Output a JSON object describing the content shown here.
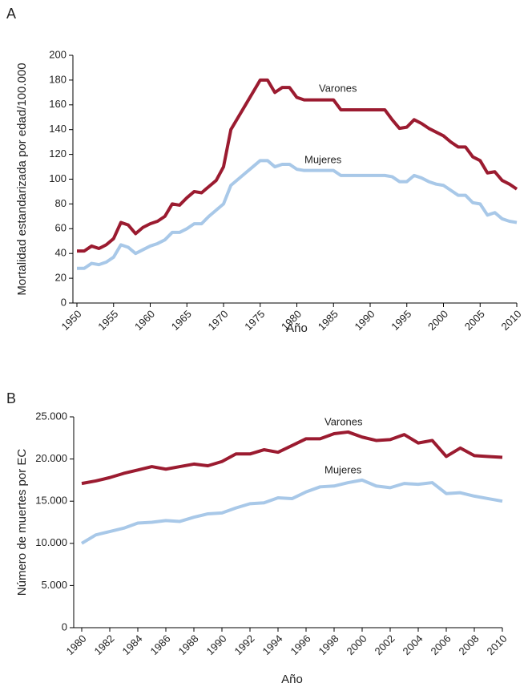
{
  "chart_data": [
    {
      "type": "line",
      "label": "A",
      "y_label": "Mortalidad estandarizada por edad/100.000",
      "x_label": "Año",
      "x": [
        1950,
        1951,
        1952,
        1953,
        1954,
        1955,
        1956,
        1957,
        1958,
        1959,
        1960,
        1961,
        1962,
        1963,
        1964,
        1965,
        1966,
        1967,
        1968,
        1969,
        1970,
        1971,
        1972,
        1973,
        1974,
        1975,
        1976,
        1977,
        1978,
        1979,
        1980,
        1981,
        1982,
        1983,
        1984,
        1985,
        1986,
        1987,
        1988,
        1989,
        1990,
        1991,
        1992,
        1993,
        1994,
        1995,
        1996,
        1997,
        1998,
        1999,
        2000,
        2001,
        2002,
        2003,
        2004,
        2005,
        2006,
        2007,
        2008,
        2009,
        2010
      ],
      "series": [
        {
          "name": "Varones",
          "color": "#9b1b30",
          "values": [
            42,
            42,
            46,
            44,
            47,
            52,
            65,
            63,
            56,
            61,
            64,
            66,
            70,
            80,
            79,
            85,
            90,
            89,
            94,
            99,
            110,
            140,
            150,
            160,
            170,
            180,
            180,
            170,
            174,
            174,
            166,
            164,
            164,
            164,
            164,
            164,
            156,
            156,
            156,
            156,
            156,
            156,
            156,
            148,
            141,
            142,
            148,
            145,
            141,
            138,
            135,
            130,
            126,
            126,
            118,
            115,
            105,
            106,
            99,
            96,
            92
          ]
        },
        {
          "name": "Mujeres",
          "color": "#a8c8e8",
          "values": [
            28,
            28,
            32,
            31,
            33,
            37,
            47,
            45,
            40,
            43,
            46,
            48,
            51,
            57,
            57,
            60,
            64,
            64,
            70,
            75,
            80,
            95,
            100,
            105,
            110,
            115,
            115,
            110,
            112,
            112,
            108,
            107,
            107,
            107,
            107,
            107,
            103,
            103,
            103,
            103,
            103,
            103,
            103,
            102,
            98,
            98,
            103,
            101,
            98,
            96,
            95,
            91,
            87,
            87,
            81,
            80,
            71,
            73,
            68,
            66,
            65
          ]
        }
      ],
      "xlim": [
        1950,
        2010
      ],
      "xticks": [
        1950,
        1955,
        1960,
        1965,
        1970,
        1975,
        1980,
        1985,
        1990,
        1995,
        2000,
        2005,
        2010
      ],
      "ylim": [
        0,
        200
      ],
      "yticks": [
        0,
        20,
        40,
        60,
        80,
        100,
        120,
        140,
        160,
        180,
        200
      ]
    },
    {
      "type": "line",
      "label": "B",
      "y_label": "Número de muertes por EC",
      "x_label": "Año",
      "x": [
        1980,
        1981,
        1982,
        1983,
        1984,
        1985,
        1986,
        1987,
        1988,
        1989,
        1990,
        1991,
        1992,
        1993,
        1994,
        1995,
        1996,
        1997,
        1998,
        1999,
        2000,
        2001,
        2002,
        2003,
        2004,
        2005,
        2006,
        2007,
        2008,
        2009,
        2010
      ],
      "series": [
        {
          "name": "Varones",
          "color": "#9b1b30",
          "values": [
            17100,
            17400,
            17800,
            18300,
            18700,
            19100,
            18800,
            19100,
            19400,
            19200,
            19700,
            20600,
            20600,
            21100,
            20800,
            21600,
            22400,
            22400,
            23000,
            23200,
            22600,
            22200,
            22300,
            22900,
            21900,
            22200,
            20300,
            21300,
            20400,
            20300,
            20200
          ]
        },
        {
          "name": "Mujeres",
          "color": "#a8c8e8",
          "values": [
            10000,
            11000,
            11400,
            11800,
            12400,
            12500,
            12700,
            12600,
            13100,
            13500,
            13600,
            14200,
            14700,
            14800,
            15400,
            15300,
            16100,
            16700,
            16800,
            17200,
            17500,
            16800,
            16600,
            17100,
            17000,
            17200,
            15900,
            16000,
            15600,
            15300,
            15000
          ]
        }
      ],
      "xlim": [
        1980,
        2010
      ],
      "xticks": [
        1980,
        1982,
        1984,
        1986,
        1988,
        1990,
        1992,
        1994,
        1996,
        1998,
        2000,
        2002,
        2004,
        2006,
        2008,
        2010
      ],
      "ylim": [
        0,
        25000
      ],
      "yticks": [
        0,
        {
          "value": 5000,
          "label": "5.000"
        },
        {
          "value": 10000,
          "label": "10.000"
        },
        {
          "value": 15000,
          "label": "15.000"
        },
        {
          "value": 20000,
          "label": "20.000"
        },
        {
          "value": 25000,
          "label": "25.000"
        }
      ]
    }
  ]
}
